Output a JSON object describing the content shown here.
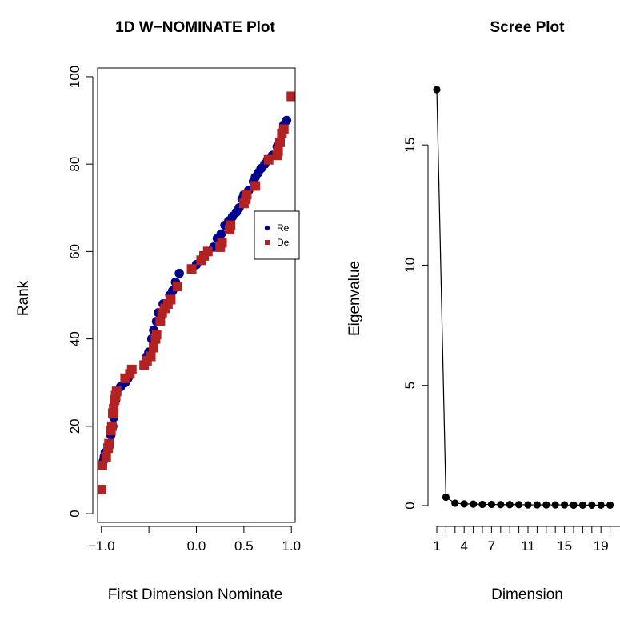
{
  "chart_data": [
    {
      "type": "scatter",
      "title": "1D W−NOMINATE Plot",
      "xlabel": "First Dimension Nominate",
      "ylabel": "Rank",
      "xlim": [
        -1.04,
        1.04
      ],
      "ylim": [
        -2,
        102
      ],
      "x_ticks": [
        -1.0,
        -0.5,
        0.0,
        0.5,
        1.0
      ],
      "x_tick_labels": [
        "−1.0",
        "",
        "0.0",
        "0.5",
        "1.0"
      ],
      "y_ticks": [
        0,
        20,
        40,
        60,
        80,
        100
      ],
      "y_tick_labels": [
        "0",
        "20",
        "40",
        "60",
        "80",
        "100"
      ],
      "legend": {
        "position": "right",
        "entries": [
          {
            "label": "Re",
            "color": "#00008B",
            "marker": "circle"
          },
          {
            "label": "De",
            "color": "#B22222",
            "marker": "square"
          }
        ]
      },
      "series": [
        {
          "name": "Re",
          "marker": "circle",
          "color": "#00008B",
          "points": [
            [
              -0.98,
              12
            ],
            [
              -0.97,
              13
            ],
            [
              -0.96,
              14
            ],
            [
              -0.92,
              16
            ],
            [
              -0.9,
              18
            ],
            [
              -0.88,
              20
            ],
            [
              -0.87,
              22
            ],
            [
              -0.85,
              26
            ],
            [
              -0.84,
              28
            ],
            [
              -0.8,
              29
            ],
            [
              -0.75,
              30
            ],
            [
              -0.72,
              31
            ],
            [
              -0.52,
              36
            ],
            [
              -0.5,
              37
            ],
            [
              -0.47,
              40
            ],
            [
              -0.45,
              42
            ],
            [
              -0.42,
              44
            ],
            [
              -0.4,
              46
            ],
            [
              -0.35,
              48
            ],
            [
              -0.28,
              50
            ],
            [
              -0.25,
              51
            ],
            [
              -0.22,
              53
            ],
            [
              -0.18,
              55
            ],
            [
              -0.05,
              56
            ],
            [
              0.0,
              57
            ],
            [
              0.05,
              58
            ],
            [
              0.12,
              60
            ],
            [
              0.18,
              61
            ],
            [
              0.22,
              63
            ],
            [
              0.26,
              64
            ],
            [
              0.3,
              66
            ],
            [
              0.34,
              67
            ],
            [
              0.38,
              68
            ],
            [
              0.42,
              69
            ],
            [
              0.45,
              70
            ],
            [
              0.48,
              72
            ],
            [
              0.5,
              73
            ],
            [
              0.55,
              74
            ],
            [
              0.6,
              76
            ],
            [
              0.62,
              77
            ],
            [
              0.65,
              78
            ],
            [
              0.68,
              79
            ],
            [
              0.72,
              80
            ],
            [
              0.75,
              81
            ],
            [
              0.8,
              82
            ],
            [
              0.85,
              84
            ],
            [
              0.88,
              85
            ],
            [
              0.9,
              87
            ],
            [
              0.92,
              89
            ],
            [
              0.95,
              90
            ]
          ]
        },
        {
          "name": "De",
          "marker": "square",
          "color": "#B22222",
          "points": [
            [
              -1.0,
              5.5
            ],
            [
              -0.99,
              11
            ],
            [
              -0.95,
              13
            ],
            [
              -0.93,
              15
            ],
            [
              -0.92,
              16
            ],
            [
              -0.9,
              19
            ],
            [
              -0.89,
              20
            ],
            [
              -0.88,
              23
            ],
            [
              -0.87,
              24
            ],
            [
              -0.86,
              26
            ],
            [
              -0.85,
              27
            ],
            [
              -0.84,
              28
            ],
            [
              -0.75,
              31
            ],
            [
              -0.7,
              32
            ],
            [
              -0.68,
              33
            ],
            [
              -0.55,
              34
            ],
            [
              -0.52,
              35
            ],
            [
              -0.48,
              36
            ],
            [
              -0.45,
              38
            ],
            [
              -0.43,
              40
            ],
            [
              -0.42,
              41
            ],
            [
              -0.38,
              44
            ],
            [
              -0.36,
              46
            ],
            [
              -0.33,
              47
            ],
            [
              -0.3,
              48
            ],
            [
              -0.27,
              49
            ],
            [
              -0.2,
              52
            ],
            [
              -0.05,
              56
            ],
            [
              0.05,
              58
            ],
            [
              0.08,
              59
            ],
            [
              0.12,
              60
            ],
            [
              0.25,
              61
            ],
            [
              0.27,
              62
            ],
            [
              0.35,
              65
            ],
            [
              0.36,
              66
            ],
            [
              0.5,
              71
            ],
            [
              0.52,
              72
            ],
            [
              0.53,
              73
            ],
            [
              0.62,
              75
            ],
            [
              0.76,
              81
            ],
            [
              0.85,
              82
            ],
            [
              0.86,
              83
            ],
            [
              0.88,
              85
            ],
            [
              0.9,
              87
            ],
            [
              0.92,
              88
            ],
            [
              1.0,
              95.5
            ]
          ]
        }
      ]
    },
    {
      "type": "line",
      "title": "Scree Plot",
      "xlabel": "Dimension",
      "ylabel": "Eigenvalue",
      "ylim": [
        -0.7,
        18.2
      ],
      "y_ticks": [
        0,
        5,
        10,
        15
      ],
      "y_tick_labels": [
        "0",
        "5",
        "10",
        "15"
      ],
      "x_ticks": [
        1,
        2,
        3,
        4,
        5,
        6,
        7,
        8,
        9,
        10,
        11,
        12,
        13,
        14,
        15,
        16,
        17,
        18,
        19,
        20
      ],
      "x_tick_labels": [
        "1",
        "4",
        "7",
        "11",
        "15",
        "19"
      ],
      "x_tick_label_values": [
        1,
        4,
        7,
        11,
        15,
        19
      ],
      "x": [
        1,
        2,
        3,
        4,
        5,
        6,
        7,
        8,
        9,
        10,
        11,
        12,
        13,
        14,
        15,
        16,
        17,
        18,
        19,
        20
      ],
      "values": [
        17.3,
        0.35,
        0.1,
        0.07,
        0.06,
        0.05,
        0.05,
        0.04,
        0.04,
        0.04,
        0.03,
        0.03,
        0.03,
        0.03,
        0.03,
        0.02,
        0.02,
        0.02,
        0.02,
        0.02
      ]
    }
  ]
}
